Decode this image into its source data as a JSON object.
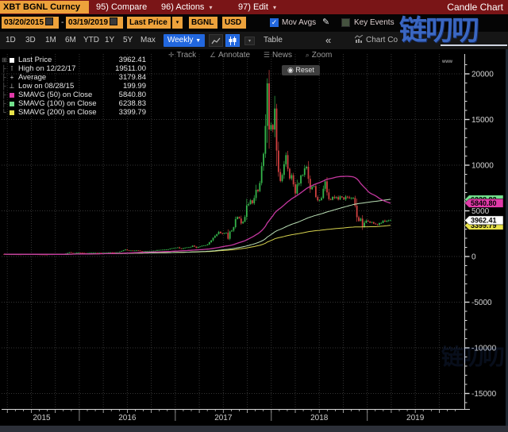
{
  "topbar": {
    "ticker": "XBT BGNL Curncy",
    "menus": [
      {
        "num": "95)",
        "label": "Compare",
        "arrow": ""
      },
      {
        "num": "96)",
        "label": "Actions",
        "arrow": "▾"
      },
      {
        "num": "97)",
        "label": "Edit",
        "arrow": "▾"
      }
    ],
    "chart_type": "Candle Chart"
  },
  "querybar": {
    "date_from": "03/20/2015",
    "date_sep": "-",
    "date_to": "03/19/2019",
    "field": "Last Price",
    "field_dd": "▾",
    "source": "BGNL",
    "currency": "USD",
    "mov_avgs": {
      "label": "Mov Avgs",
      "checked": true,
      "check_glyph": "✓"
    },
    "key_events": {
      "label": "Key Events",
      "checked": false
    }
  },
  "rangebar": {
    "ranges": [
      "1D",
      "3D",
      "1M",
      "6M",
      "YTD",
      "1Y",
      "5Y",
      "Max"
    ],
    "period": "Weekly",
    "period_caret": "▼",
    "table_label": "Table",
    "collapse": "«",
    "chart_content_label": "Chart Co"
  },
  "chart_tools": {
    "track": "Track",
    "annotate": "Annotate",
    "news": "News",
    "zoom": "Zoom",
    "reset": "Reset",
    "reset_icon": "◉"
  },
  "legend": {
    "items": [
      {
        "label": "Last Price",
        "value": "3962.41",
        "swatch": "#ffffff",
        "marker": ""
      },
      {
        "label": "High on 12/22/17",
        "value": "19511.00",
        "swatch": "",
        "marker": "⊺"
      },
      {
        "label": "Average",
        "value": "3179.84",
        "swatch": "",
        "marker": "+"
      },
      {
        "label": "Low on 08/28/15",
        "value": "199.99",
        "swatch": "",
        "marker": "⊥"
      },
      {
        "label": "SMAVG (50)  on Close",
        "value": "5840.80",
        "swatch": "#e03aa8",
        "marker": ""
      },
      {
        "label": "SMAVG (100)  on Close",
        "value": "6238.83",
        "swatch": "#72e08c",
        "marker": ""
      },
      {
        "label": "SMAVG (200)  on Close",
        "value": "3399.79",
        "swatch": "#e8e24a",
        "marker": ""
      }
    ]
  },
  "y_axis": {
    "ticks": [
      20000,
      15000,
      10000,
      5000,
      0,
      -5000,
      -10000,
      -15000
    ],
    "badges": [
      {
        "value": "6238.83",
        "color": "#72e08c"
      },
      {
        "value": "5840.80",
        "color": "#e03aa8"
      },
      {
        "value": "3399.79",
        "color": "#e8e24a"
      },
      {
        "value": "3962.41",
        "color": "#ffffff"
      }
    ]
  },
  "x_axis": {
    "years": [
      "2015",
      "2016",
      "2017",
      "2018",
      "2019"
    ]
  },
  "watermark": {
    "text": "链叨叨",
    "url_text": "www"
  },
  "chart_data": {
    "type": "candlestick",
    "symbol": "XBT BGNL Curncy",
    "interval": "weekly",
    "date_start": "03/20/2015",
    "date_end": "03/19/2019",
    "last_price": 3962.41,
    "high": {
      "date": "12/22/17",
      "value": 19511.0
    },
    "average": 3179.84,
    "low": {
      "date": "08/28/15",
      "value": 199.99
    },
    "smavg": {
      "sma50": 5840.8,
      "sma100": 6238.83,
      "sma200": 3399.79
    },
    "ylim": [
      -16500,
      21500
    ],
    "x_domain_years": [
      2015.215,
      2019.97
    ],
    "up_color": "#34b44a",
    "down_color": "#d04040",
    "sma_colors": {
      "sma50": "#c4379f",
      "sma100": "#bbe0b6",
      "sma200": "#d6d24e"
    },
    "weekly_close": [
      260,
      252,
      245,
      238,
      230,
      240,
      236,
      233,
      229,
      227,
      238,
      244,
      250,
      256,
      263,
      257,
      249,
      240,
      231,
      224,
      218,
      214,
      208,
      205,
      233,
      236,
      232,
      238,
      243,
      250,
      264,
      272,
      286,
      322,
      378,
      458,
      392,
      362,
      383,
      416,
      438,
      430,
      398,
      381,
      374,
      389,
      404,
      419,
      425,
      434,
      416,
      421,
      411,
      416,
      426,
      444,
      451,
      456,
      449,
      444,
      456,
      466,
      528,
      592,
      680,
      764,
      668,
      655,
      661,
      641,
      656,
      666,
      654,
      586,
      575,
      581,
      591,
      606,
      611,
      616,
      636,
      641,
      702,
      712,
      736,
      746,
      756,
      771,
      792,
      868,
      902,
      926,
      958,
      996,
      892,
      831,
      921,
      964,
      1002,
      1012,
      1051,
      1189,
      1081,
      946,
      1036,
      1101,
      1181,
      1211,
      1232,
      1331,
      1561,
      1772,
      2052,
      2252,
      2452,
      2702,
      2548,
      2481,
      2562,
      2601,
      1942,
      2732,
      2841,
      3212,
      4092,
      4331,
      4158,
      3622,
      3792,
      4331,
      5602,
      5741,
      6152,
      5832,
      6402,
      7302,
      7158,
      8042,
      9902,
      11252,
      14302,
      18962,
      13902,
      14402,
      13902,
      16202,
      11602,
      9252,
      8272,
      8932,
      10102,
      11102,
      9602,
      8542,
      8902,
      7902,
      6902,
      7902,
      8002,
      8872,
      8932,
      9652,
      9832,
      8502,
      7362,
      7642,
      7712,
      6512,
      6152,
      6172,
      6402,
      7412,
      8232,
      7022,
      6282,
      6202,
      6532,
      6402,
      6502,
      6242,
      6582,
      6472,
      6252,
      6562,
      6472,
      6372,
      6392,
      6412,
      5562,
      4302,
      3882,
      4142,
      3252,
      3692,
      3922,
      3822,
      3702,
      3772,
      3602,
      3532,
      3472,
      3652,
      3672,
      3922,
      3822,
      3912,
      3958,
      3962.41
    ]
  }
}
